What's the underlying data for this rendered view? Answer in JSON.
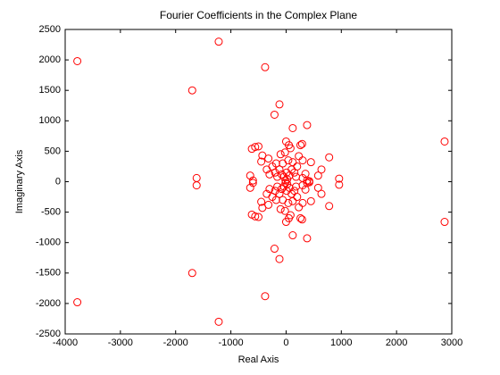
{
  "chart_data": {
    "type": "scatter",
    "title": "Fourier Coefficients in the Complex Plane",
    "x_label": "Real Axis",
    "y_label": "Imaginary Axis",
    "color": "#ff0000",
    "x": [
      -3780,
      -1220,
      -380,
      -1700,
      -120,
      -210,
      120,
      380,
      2870,
      -1620,
      960,
      780,
      640,
      580,
      -620,
      -560,
      -500,
      -650,
      -600,
      -430,
      -450,
      -320,
      -300,
      -250,
      -180,
      -100,
      -20,
      50,
      80,
      0,
      260,
      290,
      300,
      230,
      200,
      150,
      350,
      380,
      300,
      -120,
      -80,
      -40,
      20,
      60,
      100,
      -60,
      40,
      -200,
      -350,
      180,
      -10,
      10,
      120,
      -160,
      450,
      420,
      -3780,
      -1220,
      -380,
      -1700,
      -120,
      -210,
      120,
      380,
      2870,
      -1620,
      960,
      780,
      640,
      580,
      -620,
      -560,
      -500,
      -650,
      -600,
      -430,
      -450,
      -320,
      -300,
      -250,
      -180,
      -100,
      -20,
      50,
      80,
      0,
      260,
      290,
      300,
      230,
      200,
      150,
      350,
      380,
      300,
      -120,
      -80,
      -40,
      20,
      60,
      100,
      -60,
      40,
      -200,
      -350,
      180,
      -10,
      10,
      120,
      -160,
      450,
      420
    ],
    "values": [
      1980,
      2300,
      1880,
      1500,
      1270,
      1100,
      880,
      930,
      660,
      60,
      50,
      400,
      200,
      100,
      540,
      570,
      580,
      100,
      20,
      430,
      330,
      380,
      120,
      250,
      300,
      450,
      480,
      600,
      550,
      660,
      600,
      620,
      350,
      420,
      250,
      150,
      130,
      20,
      60,
      200,
      120,
      80,
      40,
      100,
      200,
      300,
      350,
      150,
      200,
      80,
      20,
      150,
      320,
      80,
      320,
      10,
      -1980,
      -2300,
      -1880,
      -1500,
      -1270,
      -1100,
      -880,
      -930,
      -660,
      -60,
      -50,
      -400,
      -200,
      -100,
      -540,
      -570,
      -580,
      -100,
      -20,
      -430,
      -330,
      -380,
      -120,
      -250,
      -300,
      -450,
      -480,
      -600,
      -550,
      -660,
      -600,
      -620,
      -350,
      -420,
      -250,
      -150,
      -130,
      -20,
      -60,
      -200,
      -120,
      -80,
      -40,
      -100,
      -200,
      -300,
      -350,
      -150,
      -200,
      -80,
      -20,
      -150,
      -320,
      -80,
      -320,
      -10
    ],
    "xlim": [
      -4000,
      3000
    ],
    "xticks": [
      -4000,
      -3000,
      -2000,
      -1000,
      0,
      1000,
      2000,
      3000
    ],
    "ylim": [
      -2500,
      2500
    ],
    "yticks": [
      -2500,
      -2000,
      -1500,
      -1000,
      -500,
      0,
      500,
      1000,
      1500,
      2000,
      2500
    ]
  }
}
